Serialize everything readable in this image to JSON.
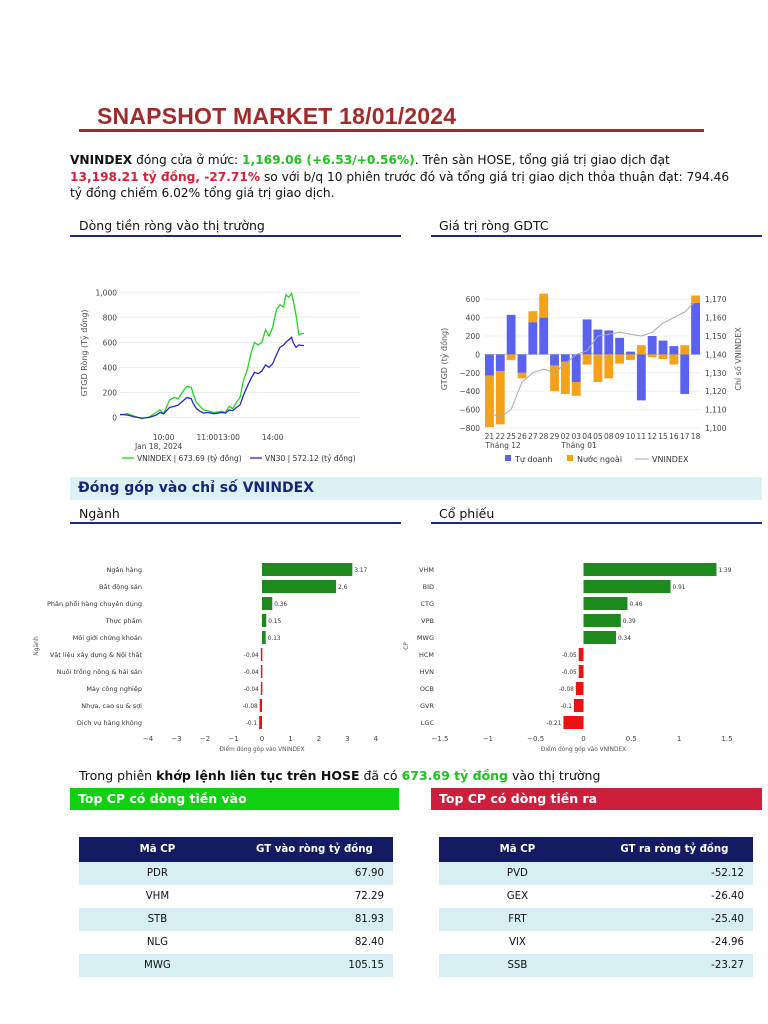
{
  "header": {
    "title": "SNAPSHOT MARKET 18/01/2024"
  },
  "summary": {
    "index_name": "VNINDEX",
    "t1": " đóng cửa ở mức: ",
    "close": "1,169.06 (+6.53/+0.56%)",
    "t2": ". Trên sàn HOSE, tổng giá trị giao dịch đạt ",
    "value": "13,198.21 tỷ đồng, -27.71%",
    "t3": " so với b/q 10 phiên trước đó và tổng giá trị giao dịch thỏa thuận đạt: 794.46 tỷ đồng chiếm 6.02% tổng giá trị giao dịch."
  },
  "sections": {
    "net_flow": "Dòng tiền ròng vào thị trường",
    "gdtc": "Giá trị ròng GDTC",
    "contribution": "Đóng góp vào chỉ số VNINDEX",
    "sector": "Ngành",
    "stock": "Cổ phiếu"
  },
  "note": {
    "t1": "Trong phiên ",
    "bold": "khớp lệnh liên tục trên HOSE",
    "t2": " đã có ",
    "amount": "673.69 tỷ đồng",
    "t3": " vào thị trường"
  },
  "colors": {
    "title": "#a32a2a",
    "navy": "#1b2a80",
    "green_line": "#22d622",
    "blue_line": "#2727c8",
    "bar_green": "#1e8a1e",
    "bar_red": "#ee1111",
    "tu_doanh": "#5b62f0",
    "nuoc_ngoai": "#f5a11a",
    "in_head": "#11d011",
    "out_head": "#cc1f3c"
  },
  "chart_data": [
    {
      "type": "line",
      "title": "",
      "ylabel": "GTGD Ròng (Tỷ đồng)",
      "ylim": [
        -20,
        1050
      ],
      "y_ticks": [
        "1,000",
        "800",
        "600",
        "400",
        "200",
        "0"
      ],
      "x_ticks": [
        "10:00",
        "11:00",
        "13:00",
        "14:00"
      ],
      "x_sub": "Jan 18, 2024",
      "x_range_min": [
        0,
        330
      ],
      "x_tick_min": [
        60,
        120,
        150,
        210
      ],
      "series": [
        {
          "name": "VNINDEX | 673.69 (tỷ đồng)",
          "points": [
            [
              0,
              20
            ],
            [
              10,
              30
            ],
            [
              20,
              10
            ],
            [
              30,
              -10
            ],
            [
              40,
              5
            ],
            [
              50,
              40
            ],
            [
              55,
              60
            ],
            [
              60,
              30
            ],
            [
              68,
              140
            ],
            [
              75,
              160
            ],
            [
              80,
              150
            ],
            [
              88,
              220
            ],
            [
              92,
              250
            ],
            [
              98,
              240
            ],
            [
              100,
              200
            ],
            [
              105,
              120
            ],
            [
              110,
              90
            ],
            [
              115,
              60
            ],
            [
              120,
              55
            ],
            [
              125,
              45
            ],
            [
              130,
              40
            ],
            [
              140,
              50
            ],
            [
              145,
              40
            ],
            [
              150,
              90
            ],
            [
              155,
              70
            ],
            [
              160,
              120
            ],
            [
              165,
              160
            ],
            [
              170,
              300
            ],
            [
              175,
              380
            ],
            [
              180,
              510
            ],
            [
              185,
              600
            ],
            [
              190,
              580
            ],
            [
              195,
              600
            ],
            [
              200,
              700
            ],
            [
              205,
              650
            ],
            [
              210,
              720
            ],
            [
              215,
              860
            ],
            [
              220,
              900
            ],
            [
              225,
              880
            ],
            [
              228,
              980
            ],
            [
              232,
              960
            ],
            [
              236,
              990
            ],
            [
              238,
              940
            ],
            [
              242,
              820
            ],
            [
              246,
              660
            ],
            [
              250,
              670
            ],
            [
              253,
              670
            ]
          ]
        },
        {
          "name": "VN30 | 572.12 (tỷ đồng)",
          "points": [
            [
              0,
              25
            ],
            [
              10,
              20
            ],
            [
              20,
              5
            ],
            [
              30,
              -5
            ],
            [
              40,
              0
            ],
            [
              50,
              20
            ],
            [
              55,
              40
            ],
            [
              60,
              30
            ],
            [
              68,
              80
            ],
            [
              75,
              90
            ],
            [
              80,
              100
            ],
            [
              88,
              140
            ],
            [
              92,
              160
            ],
            [
              98,
              150
            ],
            [
              100,
              120
            ],
            [
              105,
              70
            ],
            [
              110,
              50
            ],
            [
              115,
              35
            ],
            [
              120,
              40
            ],
            [
              125,
              35
            ],
            [
              130,
              30
            ],
            [
              140,
              40
            ],
            [
              145,
              35
            ],
            [
              150,
              60
            ],
            [
              155,
              55
            ],
            [
              160,
              80
            ],
            [
              165,
              100
            ],
            [
              170,
              180
            ],
            [
              175,
              250
            ],
            [
              180,
              310
            ],
            [
              185,
              360
            ],
            [
              190,
              350
            ],
            [
              195,
              370
            ],
            [
              200,
              420
            ],
            [
              205,
              400
            ],
            [
              210,
              430
            ],
            [
              215,
              500
            ],
            [
              220,
              560
            ],
            [
              225,
              580
            ],
            [
              228,
              600
            ],
            [
              232,
              620
            ],
            [
              236,
              640
            ],
            [
              238,
              600
            ],
            [
              242,
              560
            ],
            [
              246,
              580
            ],
            [
              250,
              575
            ],
            [
              253,
              575
            ]
          ]
        }
      ]
    },
    {
      "type": "bar",
      "title": "",
      "ylabel": "GTGD (tỷ đồng)",
      "y2label": "Chỉ số VNINDEX",
      "ylim": [
        -800,
        700
      ],
      "y2lim": [
        1100,
        1175
      ],
      "y_ticks": [
        "600",
        "400",
        "200",
        "0",
        "−200",
        "−400",
        "−600",
        "−800"
      ],
      "y2_ticks": [
        "1,170",
        "1,160",
        "1,150",
        "1,140",
        "1,130",
        "1,120",
        "1,110",
        "1,100"
      ],
      "categories": [
        "21",
        "22",
        "25",
        "26",
        "27",
        "28",
        "29",
        "02",
        "03",
        "04",
        "05",
        "08",
        "09",
        "10",
        "11",
        "12",
        "15",
        "16",
        "17",
        "18"
      ],
      "month_labels": [
        "Tháng 12",
        "Tháng 01"
      ],
      "series": [
        {
          "name": "Tự doanh",
          "values": [
            -230,
            -180,
            430,
            -200,
            350,
            400,
            -120,
            -80,
            -300,
            380,
            270,
            260,
            180,
            30,
            -500,
            200,
            150,
            90,
            -430,
            560
          ]
        },
        {
          "name": "Nước ngoài",
          "values": [
            -560,
            -580,
            -60,
            -60,
            120,
            260,
            -280,
            -350,
            -150,
            -110,
            -300,
            -260,
            -100,
            -60,
            100,
            -30,
            -50,
            -110,
            100,
            80
          ]
        },
        {
          "name": "VNINDEX",
          "values": [
            1108,
            1106,
            1110,
            1125,
            1130,
            1132,
            1130,
            1135,
            1140,
            1142,
            1150,
            1151,
            1152,
            1151,
            1150,
            1152,
            1157,
            1160,
            1163,
            1169
          ]
        }
      ]
    },
    {
      "type": "bar",
      "title": "",
      "ylabel": "Ngành",
      "xlabel": "Điểm đóng góp vào VNINDEX",
      "xlim": [
        -4,
        4
      ],
      "x_ticks": [
        "−4",
        "−3",
        "−2",
        "−1",
        "0",
        "1",
        "2",
        "3",
        "4"
      ],
      "categories": [
        "Ngân hàng",
        "Bất động sản",
        "Phân phối hàng chuyên dụng",
        "Thực phẩm",
        "Môi giới chứng khoán",
        "Vật liệu xây dựng & Nội thất",
        "Nuôi trồng nông & hải sản",
        "Máy công nghiệp",
        "Nhựa, cao su & sợi",
        "Dịch vụ hàng không"
      ],
      "values": [
        3.17,
        2.6,
        0.36,
        0.15,
        0.13,
        -0.04,
        -0.04,
        -0.04,
        -0.08,
        -0.1
      ],
      "labels": [
        "3.17",
        "2.6",
        "0.36",
        "0.15",
        "0.13",
        "-0.04",
        "-0.04",
        "-0.04",
        "-0.08",
        "-0.1"
      ]
    },
    {
      "type": "bar",
      "title": "",
      "ylabel": "CP",
      "xlabel": "Điểm đóng góp vào VNINDEX",
      "xlim": [
        -1.5,
        1.5
      ],
      "x_ticks": [
        "−1.5",
        "−1",
        "−0.5",
        "0",
        "0.5",
        "1",
        "1.5"
      ],
      "categories": [
        "VHM",
        "BID",
        "CTG",
        "VPB",
        "MWG",
        "HCM",
        "HVN",
        "OCB",
        "GVR",
        "LGC"
      ],
      "values": [
        1.39,
        0.91,
        0.46,
        0.39,
        0.34,
        -0.05,
        -0.05,
        -0.08,
        -0.1,
        -0.21
      ],
      "labels": [
        "1.39",
        "0.91",
        "0.46",
        "0.39",
        "0.34",
        "-0.05",
        "-0.05",
        "-0.08",
        "-0.1",
        "-0.21"
      ]
    }
  ],
  "top_in": {
    "title": "Top CP có dòng tiền vào",
    "col1": "Mã CP",
    "col2": "GT vào ròng tỷ đồng",
    "rows": [
      {
        "code": "PDR",
        "value": "67.90"
      },
      {
        "code": "VHM",
        "value": "72.29"
      },
      {
        "code": "STB",
        "value": "81.93"
      },
      {
        "code": "NLG",
        "value": "82.40"
      },
      {
        "code": "MWG",
        "value": "105.15"
      }
    ]
  },
  "top_out": {
    "title": "Top CP có dòng tiền ra",
    "col1": "Mã CP",
    "col2": "GT ra ròng tỷ đồng",
    "rows": [
      {
        "code": "PVD",
        "value": "-52.12"
      },
      {
        "code": "GEX",
        "value": "-26.40"
      },
      {
        "code": "FRT",
        "value": "-25.40"
      },
      {
        "code": "VIX",
        "value": "-24.96"
      },
      {
        "code": "SSB",
        "value": "-23.27"
      }
    ]
  }
}
